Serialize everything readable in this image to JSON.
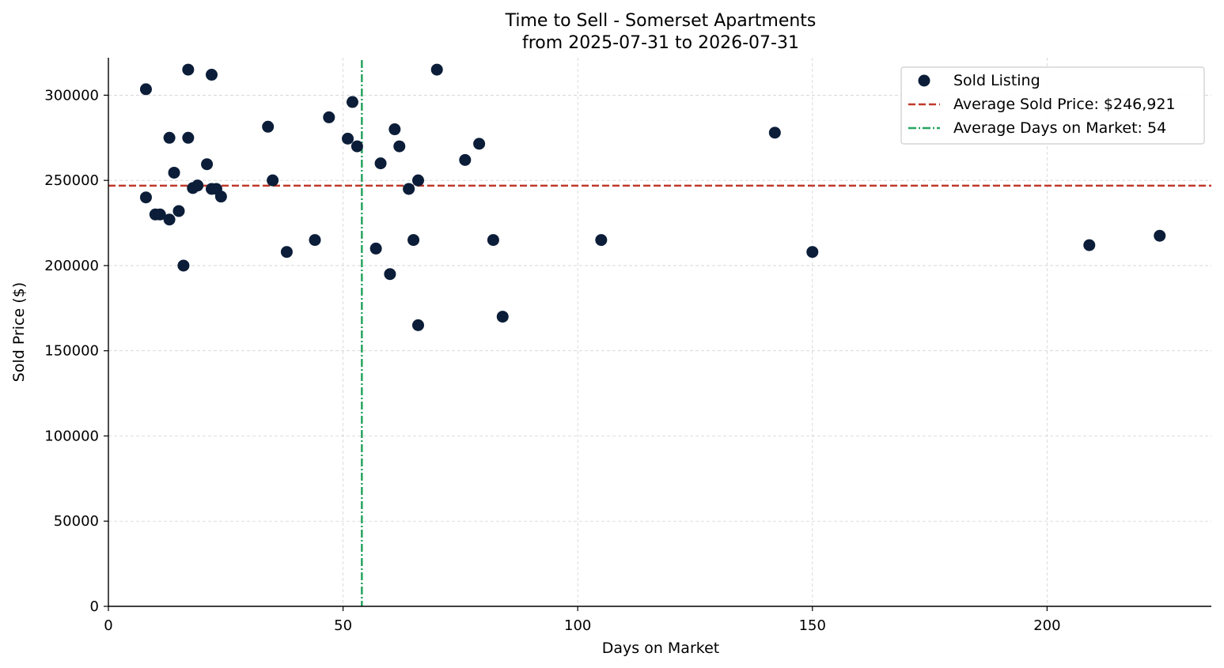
{
  "chart_data": {
    "type": "scatter",
    "title": "Time to Sell - Somerset Apartments",
    "subtitle": "from 2025-07-31 to 2026-07-31",
    "xlabel": "Days on Market",
    "ylabel": "Sold Price ($)",
    "xlim": [
      0,
      235
    ],
    "ylim": [
      0,
      322000
    ],
    "xticks": [
      0,
      50,
      100,
      150,
      200
    ],
    "yticks": [
      0,
      50000,
      100000,
      150000,
      200000,
      250000,
      300000
    ],
    "grid": true,
    "legend_position": "top-right",
    "colors": {
      "points": "#0b1d38",
      "avg_price_line": "#c0392b",
      "avg_days_line": "#27a35f"
    },
    "series": [
      {
        "name": "Sold Listing",
        "points": [
          {
            "x": 8,
            "y": 303500
          },
          {
            "x": 8,
            "y": 240000
          },
          {
            "x": 10,
            "y": 230000
          },
          {
            "x": 11,
            "y": 230000
          },
          {
            "x": 13,
            "y": 275000
          },
          {
            "x": 13,
            "y": 227000
          },
          {
            "x": 14,
            "y": 254500
          },
          {
            "x": 15,
            "y": 232000
          },
          {
            "x": 16,
            "y": 200000
          },
          {
            "x": 17,
            "y": 315000
          },
          {
            "x": 17,
            "y": 275000
          },
          {
            "x": 18,
            "y": 245500
          },
          {
            "x": 19,
            "y": 247000
          },
          {
            "x": 21,
            "y": 259500
          },
          {
            "x": 22,
            "y": 312000
          },
          {
            "x": 22,
            "y": 245000
          },
          {
            "x": 23,
            "y": 245000
          },
          {
            "x": 24,
            "y": 240500
          },
          {
            "x": 34,
            "y": 281500
          },
          {
            "x": 35,
            "y": 250000
          },
          {
            "x": 38,
            "y": 208000
          },
          {
            "x": 44,
            "y": 215000
          },
          {
            "x": 47,
            "y": 287000
          },
          {
            "x": 51,
            "y": 274500
          },
          {
            "x": 52,
            "y": 296000
          },
          {
            "x": 53,
            "y": 270000
          },
          {
            "x": 57,
            "y": 210000
          },
          {
            "x": 58,
            "y": 260000
          },
          {
            "x": 60,
            "y": 195000
          },
          {
            "x": 61,
            "y": 280000
          },
          {
            "x": 62,
            "y": 270000
          },
          {
            "x": 64,
            "y": 245000
          },
          {
            "x": 65,
            "y": 215000
          },
          {
            "x": 66,
            "y": 250000
          },
          {
            "x": 66,
            "y": 165000
          },
          {
            "x": 70,
            "y": 315000
          },
          {
            "x": 76,
            "y": 262000
          },
          {
            "x": 79,
            "y": 271500
          },
          {
            "x": 82,
            "y": 215000
          },
          {
            "x": 84,
            "y": 170000
          },
          {
            "x": 105,
            "y": 215000
          },
          {
            "x": 142,
            "y": 278000
          },
          {
            "x": 150,
            "y": 208000
          },
          {
            "x": 209,
            "y": 212000
          },
          {
            "x": 224,
            "y": 217500
          }
        ]
      }
    ],
    "reference_lines": [
      {
        "name": "Average Sold Price: $246,921",
        "orientation": "horizontal",
        "value": 246921,
        "style": "dashed"
      },
      {
        "name": "Average Days on Market: 54",
        "orientation": "vertical",
        "value": 54,
        "style": "dashdot"
      }
    ]
  }
}
